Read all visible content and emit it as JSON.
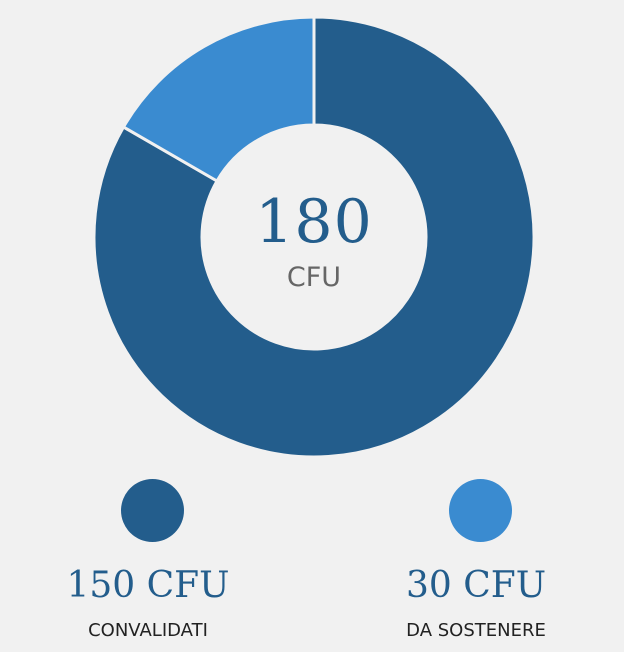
{
  "chart_data": {
    "type": "pie",
    "variant": "donut",
    "total": {
      "value": "180",
      "unit": "CFU"
    },
    "slices": [
      {
        "label": "CONVALIDATI",
        "value": 150,
        "display": "150 CFU",
        "color": "#235d8c"
      },
      {
        "label": "DA SOSTENERE",
        "value": 30,
        "display": "30 CFU",
        "color": "#3a8bd0"
      }
    ],
    "background": "#f1f1f1",
    "separator_color": "#f1f1f1"
  }
}
